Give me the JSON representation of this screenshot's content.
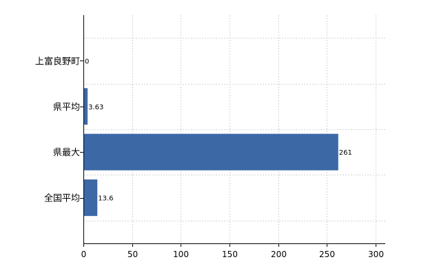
{
  "chart_data": {
    "type": "bar",
    "orientation": "horizontal",
    "categories": [
      "上富良野町",
      "県平均",
      "県最大",
      "全国平均"
    ],
    "values": [
      0,
      3.63,
      261,
      13.6
    ],
    "value_labels": [
      "0",
      "3.63",
      "261",
      "13.6"
    ],
    "xlim": [
      0,
      310
    ],
    "xticks": [
      0,
      50,
      100,
      150,
      200,
      250,
      300
    ],
    "grid": true,
    "bar_color": "#3c68a6"
  }
}
